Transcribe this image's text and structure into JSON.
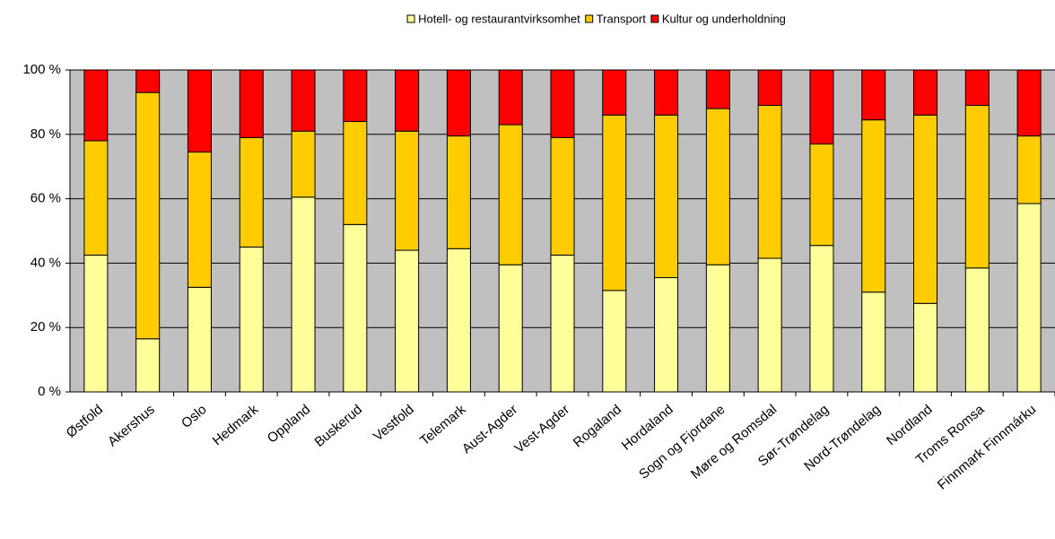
{
  "chart_data": {
    "type": "stacked_bar",
    "categories": [
      "Østfold",
      "Akershus",
      "Oslo",
      "Hedmark",
      "Oppland",
      "Buskerud",
      "Vestfold",
      "Telemark",
      "Aust-Agder",
      "Vest-Agder",
      "Rogaland",
      "Hordaland",
      "Sogn og Fjordane",
      "Møre og Romsdal",
      "Sør-Trøndelag",
      "Nord-Trøndelag",
      "Nordland",
      "Troms Romsa",
      "Finnmark Finnmárku"
    ],
    "series": [
      {
        "name": "Hotell- og restaurantvirksomhet",
        "color": "#ffff99",
        "values": [
          42.5,
          16.5,
          32.5,
          45,
          60.5,
          52,
          44,
          44.5,
          39.5,
          42.5,
          31.5,
          35.5,
          39.5,
          41.5,
          45.5,
          31,
          27.5,
          38.5,
          58.5
        ]
      },
      {
        "name": "Transport",
        "color": "#ffcc00",
        "values": [
          35.5,
          76.5,
          42,
          34,
          20.5,
          32,
          37,
          35,
          43.5,
          36.5,
          54.5,
          50.5,
          48.5,
          47.5,
          31.5,
          53.5,
          58.5,
          50.5,
          21
        ]
      },
      {
        "name": "Kultur og underholdning",
        "color": "#ff0000",
        "values": [
          22,
          7,
          25.5,
          21,
          19,
          16,
          19,
          20.5,
          17,
          21,
          14,
          14,
          12,
          11,
          23,
          15.5,
          14,
          11,
          20.5
        ]
      }
    ],
    "ylim": [
      0,
      100
    ],
    "yticks": [
      {
        "value": 0,
        "label": "0 %"
      },
      {
        "value": 20,
        "label": "20 %"
      },
      {
        "value": 40,
        "label": "40 %"
      },
      {
        "value": 60,
        "label": "60 %"
      },
      {
        "value": 80,
        "label": "80 %"
      },
      {
        "value": 100,
        "label": "100 %"
      }
    ],
    "grid": true,
    "legend": "top"
  }
}
